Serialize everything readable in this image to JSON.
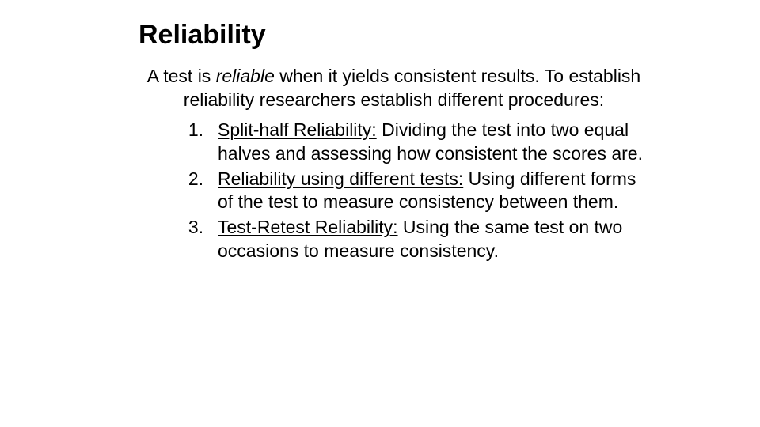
{
  "title": "Reliability",
  "intro_prefix": "A test is ",
  "intro_italic": "reliable",
  "intro_suffix": " when it yields consistent results. To establish reliability researchers establish different procedures:",
  "items": [
    {
      "number": "1.",
      "term": "Split-half Reliability:",
      "desc": " Dividing the test into two equal halves and assessing how consistent the scores are."
    },
    {
      "number": "2.",
      "term": "Reliability using different tests:",
      "desc": " Using different forms of the test to measure consistency between them."
    },
    {
      "number": "3.",
      "term": "Test-Retest Reliability:",
      "desc": " Using the same test on two occasions to measure consistency."
    }
  ],
  "styling": {
    "background_color": "#ffffff",
    "text_color": "#000000",
    "title_fontsize": 34,
    "body_fontsize": 23,
    "font_family": "Arial",
    "title_weight": "bold",
    "line_height": 1.3
  }
}
